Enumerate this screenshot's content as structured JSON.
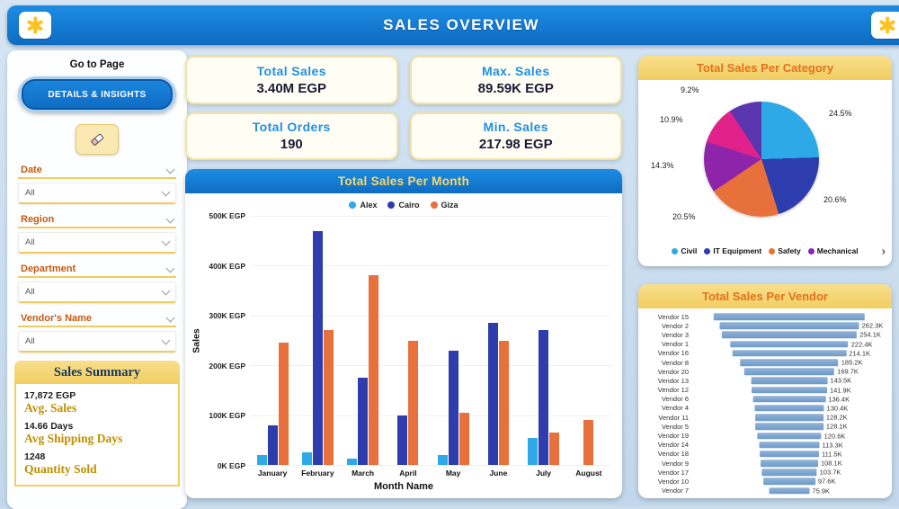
{
  "header": {
    "title": "SALES OVERVIEW"
  },
  "sidebar": {
    "goto_label": "Go to Page",
    "details_button": "DETAILS & INSIGHTS",
    "filters": [
      {
        "label": "Date",
        "value": "All"
      },
      {
        "label": "Region",
        "value": "All"
      },
      {
        "label": "Department",
        "value": "All"
      },
      {
        "label": "Vendor's Name",
        "value": "All"
      }
    ],
    "summary": {
      "title": "Sales Summary",
      "items": [
        {
          "value": "17,872 EGP",
          "label": "Avg. Sales"
        },
        {
          "value": "14.66 Days",
          "label": "Avg Shipping Days"
        },
        {
          "value": "1248",
          "label": "Quantity Sold"
        }
      ]
    }
  },
  "kpis": [
    {
      "title": "Total Sales",
      "value": "3.40M EGP"
    },
    {
      "title": "Max. Sales",
      "value": "89.59K EGP"
    },
    {
      "title": "Total Orders",
      "value": "190"
    },
    {
      "title": "Min. Sales",
      "value": "217.98 EGP"
    }
  ],
  "chart_data": [
    {
      "type": "bar",
      "title": "Total Sales Per Month",
      "xlabel": "Month Name",
      "ylabel": "Sales",
      "categories": [
        "January",
        "February",
        "March",
        "April",
        "May",
        "June",
        "July",
        "August"
      ],
      "series": [
        {
          "name": "Alex",
          "color": "#2EA9E8",
          "values": [
            20,
            25,
            12,
            0,
            20,
            0,
            55,
            0
          ]
        },
        {
          "name": "Cairo",
          "color": "#2E3DAD",
          "values": [
            80,
            470,
            175,
            100,
            230,
            285,
            270,
            0
          ]
        },
        {
          "name": "Giza",
          "color": "#E8703A",
          "values": [
            245,
            270,
            380,
            250,
            105,
            250,
            65,
            90
          ]
        }
      ],
      "unit": "K EGP",
      "ymax": 500,
      "yticks": [
        "500K EGP",
        "400K EGP",
        "300K EGP",
        "200K EGP",
        "100K EGP",
        "0K EGP"
      ]
    },
    {
      "type": "pie",
      "title": "Total Sales Per Category",
      "slices": [
        {
          "label": "Civil",
          "pct": 24.5,
          "pct_label": "24.5%",
          "color": "#2EA9E8"
        },
        {
          "label": "IT Equipment",
          "pct": 20.6,
          "pct_label": "20.6%",
          "color": "#2E3DAD"
        },
        {
          "label": "Safety",
          "pct": 20.5,
          "pct_label": "20.5%",
          "color": "#E8703A"
        },
        {
          "label": "Mechanical",
          "pct": 14.3,
          "pct_label": "14.3%",
          "color": "#8E24AA"
        },
        {
          "label": "",
          "pct": 10.9,
          "pct_label": "10.9%",
          "color": "#E0218A"
        },
        {
          "label": "",
          "pct": 9.2,
          "pct_label": "9.2%",
          "color": "#5A35B0"
        }
      ],
      "legend": [
        "Civil",
        "IT Equipment",
        "Safety",
        "Mechanical"
      ],
      "legend_more": "›"
    },
    {
      "type": "bar",
      "subtype": "funnel",
      "title": "Total Sales Per Vendor",
      "unit": "K EGP",
      "max_value": 285,
      "rows": [
        {
          "name": "Vendor 15",
          "value": 285,
          "label": ""
        },
        {
          "name": "Vendor 2",
          "value": 262.3,
          "label": "262.3K"
        },
        {
          "name": "Vendor 3",
          "value": 254.1,
          "label": "254.1K"
        },
        {
          "name": "Vendor 1",
          "value": 222.4,
          "label": "222.4K"
        },
        {
          "name": "Vendor 16",
          "value": 214.1,
          "label": "214.1K"
        },
        {
          "name": "Vendor 8",
          "value": 185.2,
          "label": "185.2K"
        },
        {
          "name": "Vendor 20",
          "value": 169.7,
          "label": "169.7K"
        },
        {
          "name": "Vendor 13",
          "value": 143.5,
          "label": "143.5K"
        },
        {
          "name": "Vendor 12",
          "value": 141.9,
          "label": "141.9K"
        },
        {
          "name": "Vendor 6",
          "value": 136.4,
          "label": "136.4K"
        },
        {
          "name": "Vendor 4",
          "value": 130.4,
          "label": "130.4K"
        },
        {
          "name": "Vendor 11",
          "value": 128.2,
          "label": "128.2K"
        },
        {
          "name": "Vendor 5",
          "value": 128.1,
          "label": "128.1K"
        },
        {
          "name": "Vendor 19",
          "value": 120.6,
          "label": "120.6K"
        },
        {
          "name": "Vendor 14",
          "value": 113.3,
          "label": "113.3K"
        },
        {
          "name": "Vendor 18",
          "value": 111.5,
          "label": "111.5K"
        },
        {
          "name": "Vendor 9",
          "value": 108.1,
          "label": "108.1K"
        },
        {
          "name": "Vendor 17",
          "value": 103.7,
          "label": "103.7K"
        },
        {
          "name": "Vendor 10",
          "value": 97.6,
          "label": "97.6K"
        },
        {
          "name": "Vendor 7",
          "value": 75.9,
          "label": "75.9K"
        }
      ]
    }
  ]
}
